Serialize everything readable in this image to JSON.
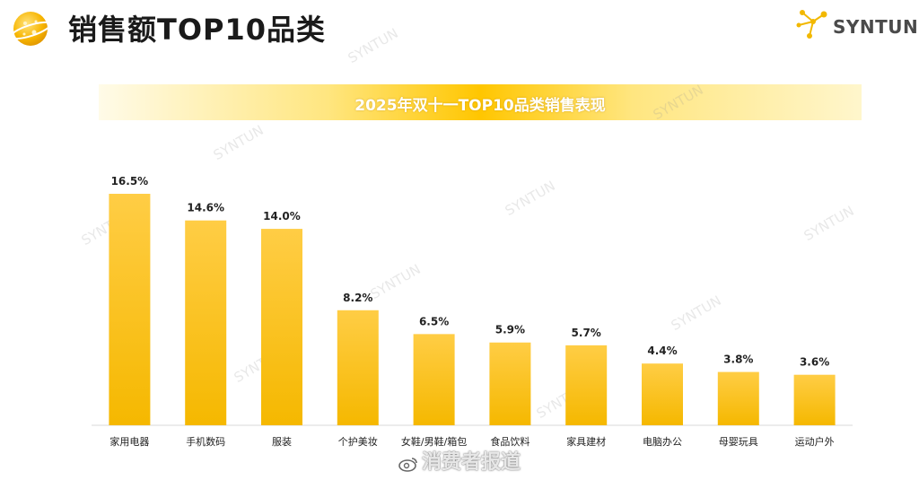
{
  "header": {
    "title": "销售额TOP10品类",
    "brand": "SYNTUN"
  },
  "banner": {
    "text": "2025年双十一TOP10品类销售表现"
  },
  "watermark": {
    "text": "SYNTUN",
    "source": "消费者报道"
  },
  "colors": {
    "bar_top": "#ffcd45",
    "bar_bottom": "#f5b800",
    "accent": "#ffc600"
  },
  "chart_data": {
    "type": "bar",
    "categories": [
      "家用电器",
      "手机数码",
      "服装",
      "个护美妆",
      "女鞋/男鞋/箱包",
      "食品饮料",
      "家具建材",
      "电脑办公",
      "母婴玩具",
      "运动户外"
    ],
    "values": [
      16.5,
      14.6,
      14.0,
      8.2,
      6.5,
      5.9,
      5.7,
      4.4,
      3.8,
      3.6
    ],
    "value_labels": [
      "16.5%",
      "14.6%",
      "14.0%",
      "8.2%",
      "6.5%",
      "5.9%",
      "5.7%",
      "4.4%",
      "3.8%",
      "3.6%"
    ],
    "title": "2025年双十一TOP10品类销售表现",
    "unit": "%",
    "ylim": [
      0,
      16.5
    ],
    "grid": false,
    "legend": "none"
  }
}
